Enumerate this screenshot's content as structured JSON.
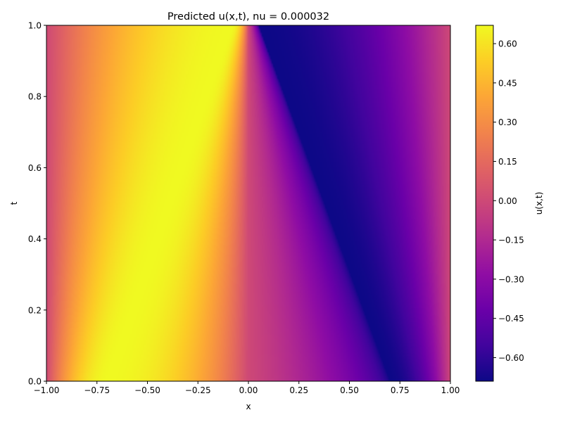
{
  "chart_data": {
    "type": "heatmap",
    "title": "Predicted u(x,t), nu = 0.000032",
    "xlabel": "x",
    "ylabel": "t",
    "colorbar_label": "u(x,t)",
    "colormap": "plasma",
    "xlim": [
      -1.0,
      1.0
    ],
    "ylim": [
      0.0,
      1.0
    ],
    "value_range": [
      -0.69,
      0.67
    ],
    "x_ticks": [
      -1.0,
      -0.75,
      -0.5,
      -0.25,
      0.0,
      0.25,
      0.5,
      0.75,
      1.0
    ],
    "x_tick_labels": [
      "−1.00",
      "−0.75",
      "−0.50",
      "−0.25",
      "0.00",
      "0.25",
      "0.50",
      "0.75",
      "1.00"
    ],
    "y_ticks": [
      0.0,
      0.2,
      0.4,
      0.6,
      0.8,
      1.0
    ],
    "y_tick_labels": [
      "0.0",
      "0.2",
      "0.4",
      "0.6",
      "0.8",
      "1.0"
    ],
    "colorbar_ticks": [
      -0.6,
      -0.45,
      -0.3,
      -0.15,
      0.0,
      0.15,
      0.3,
      0.45,
      0.6
    ],
    "colorbar_tick_labels": [
      "−0.60",
      "−0.45",
      "−0.30",
      "−0.15",
      "0.00",
      "0.15",
      "0.30",
      "0.45",
      "0.60"
    ],
    "field": {
      "description_free": true,
      "max_ridge": {
        "t": [
          0.0,
          1.0
        ],
        "x": [
          -0.7,
          -0.08
        ],
        "value": 0.67
      },
      "min_trough": {
        "t": [
          0.0,
          1.0
        ],
        "x": [
          0.7,
          0.05
        ],
        "value": -0.69
      },
      "zero_crossing": {
        "t": [
          0.0,
          1.0
        ],
        "x": [
          0.0,
          0.0
        ]
      },
      "boundary_value": 0.0
    },
    "grid": false
  }
}
